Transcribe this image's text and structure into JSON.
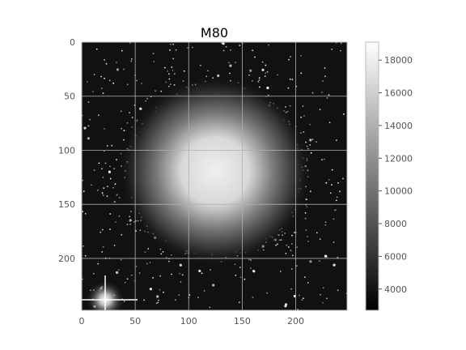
{
  "chart_data": {
    "type": "heatmap",
    "title": "M80",
    "xlabel": "",
    "ylabel": "",
    "image_extent": {
      "x": [
        0,
        248
      ],
      "y": [
        248,
        0
      ]
    },
    "xlim": [
      0,
      248
    ],
    "ylim": [
      248,
      0
    ],
    "x_ticks": [
      0,
      50,
      100,
      150,
      200
    ],
    "y_ticks": [
      0,
      50,
      100,
      150,
      200
    ],
    "grid": true,
    "colormap": "gray",
    "colorbar": {
      "range": [
        2700,
        19100
      ],
      "ticks": [
        4000,
        6000,
        8000,
        10000,
        12000,
        14000,
        16000,
        18000
      ]
    },
    "features": {
      "cluster_center": [
        125,
        120
      ],
      "bright_star": [
        22,
        238
      ]
    }
  },
  "colors": {
    "background": "#ffffff",
    "grid": "#b0b0b0",
    "tick_text": "#555555",
    "axes_edge": "#bbbbbb"
  }
}
